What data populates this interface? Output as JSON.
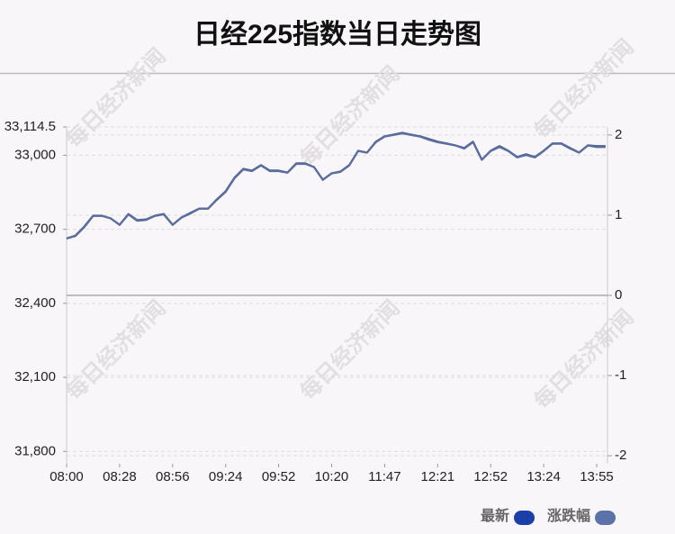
{
  "chart_data": {
    "type": "line",
    "title": "日经225指数当日走势图",
    "watermark": "每日经济新闻",
    "categories": [
      "08:00",
      null,
      null,
      null,
      null,
      null,
      "08:28",
      null,
      null,
      null,
      null,
      null,
      "08:56",
      null,
      null,
      null,
      null,
      null,
      "09:24",
      null,
      null,
      null,
      null,
      null,
      "09:52",
      null,
      null,
      null,
      null,
      null,
      "10:20",
      null,
      null,
      null,
      null,
      null,
      "11:47",
      null,
      null,
      null,
      null,
      null,
      "12:21",
      null,
      null,
      null,
      null,
      null,
      "12:52",
      null,
      null,
      null,
      null,
      null,
      "13:24",
      null,
      null,
      null,
      null,
      null,
      "13:55",
      null
    ],
    "series": [
      {
        "name": "最新",
        "color": "#1a3fa8",
        "line_color": "#4a5f94",
        "values": [
          32663,
          32674,
          32711,
          32755,
          32755,
          32744,
          32718,
          32762,
          32737,
          32740,
          32755,
          32762,
          32718,
          32748,
          32766,
          32784,
          32784,
          32821,
          32854,
          32909,
          32945,
          32938,
          32960,
          32938,
          32938,
          32930,
          32967,
          32967,
          32952,
          32901,
          32927,
          32934,
          32960,
          33018,
          33011,
          33055,
          33077,
          33084,
          33091,
          33084,
          33077,
          33066,
          33055,
          33048,
          33040,
          33029,
          33055,
          32982,
          33018,
          33037,
          33018,
          32993,
          33004,
          32993,
          33018,
          33048,
          33048,
          33029,
          33011,
          33040,
          33037,
          33037
        ]
      },
      {
        "name": "涨跌幅",
        "color": "#5b73a8",
        "line_color": "#5a6d9c",
        "axis": "y2",
        "values": [
          0.71,
          0.74,
          0.85,
          0.99,
          0.99,
          0.96,
          0.88,
          1.01,
          0.93,
          0.94,
          0.99,
          1.01,
          0.88,
          0.97,
          1.02,
          1.08,
          1.08,
          1.19,
          1.29,
          1.46,
          1.57,
          1.55,
          1.62,
          1.55,
          1.55,
          1.53,
          1.64,
          1.64,
          1.6,
          1.44,
          1.52,
          1.54,
          1.62,
          1.8,
          1.78,
          1.91,
          1.98,
          2.0,
          2.02,
          2.0,
          1.98,
          1.94,
          1.91,
          1.89,
          1.87,
          1.83,
          1.91,
          1.69,
          1.8,
          1.85,
          1.8,
          1.72,
          1.75,
          1.72,
          1.8,
          1.89,
          1.89,
          1.83,
          1.78,
          1.87,
          1.85,
          1.85
        ]
      }
    ],
    "ylim": [
      31750,
      33114.5
    ],
    "yticks": [
      {
        "value": 31800,
        "label": "31,800"
      },
      {
        "value": 32100,
        "label": "32,100"
      },
      {
        "value": 32400,
        "label": "32,400"
      },
      {
        "value": 32700,
        "label": "32,700"
      },
      {
        "value": 33000,
        "label": "33,000"
      },
      {
        "value": 33114.5,
        "label": "33,114.5"
      }
    ],
    "y2lim": [
      -2.1,
      2.1
    ],
    "y2ticks": [
      -2,
      -1,
      0,
      1,
      2
    ],
    "grid": true,
    "legend": "bottom-right"
  }
}
